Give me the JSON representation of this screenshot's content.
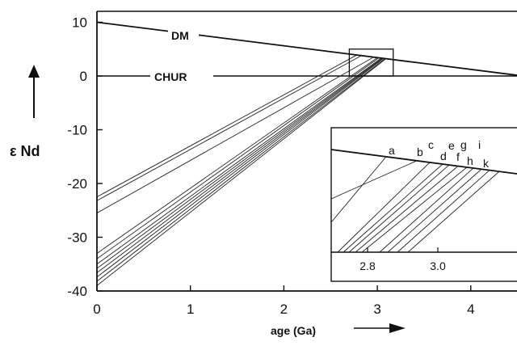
{
  "chart_data": {
    "type": "line",
    "title": "",
    "xlabel": "age (Ga)",
    "ylabel": "ε Nd",
    "xlim": [
      0,
      4.56
    ],
    "ylim": [
      -40,
      12
    ],
    "x_ticks": [
      0,
      1,
      2,
      3,
      4
    ],
    "x_tick_labels": [
      "0",
      "1",
      "2",
      "3",
      "4"
    ],
    "y_ticks": [
      10,
      0,
      -10,
      -20,
      -30,
      -40
    ],
    "y_tick_labels": [
      "10",
      "0",
      "-10",
      "-20",
      "-30",
      "-40"
    ],
    "grid": false,
    "reference_lines": [
      {
        "name": "DM",
        "x": [
          0,
          4.56
        ],
        "y": [
          10,
          0
        ]
      },
      {
        "name": "CHUR",
        "x": [
          0,
          4.56
        ],
        "y": [
          0,
          0
        ]
      }
    ],
    "series": [
      {
        "x": [
          0,
          2.96
        ],
        "y": [
          -25.5,
          3.5
        ]
      },
      {
        "x": [
          0,
          3.0
        ],
        "y": [
          -33.0,
          3.4
        ]
      },
      {
        "x": [
          0,
          3.02
        ],
        "y": [
          -34.0,
          3.4
        ]
      },
      {
        "x": [
          0,
          3.04
        ],
        "y": [
          -35.0,
          3.3
        ]
      },
      {
        "x": [
          0,
          3.05
        ],
        "y": [
          -35.8,
          3.3
        ]
      },
      {
        "x": [
          0,
          3.06
        ],
        "y": [
          -36.6,
          3.3
        ]
      },
      {
        "x": [
          0,
          3.07
        ],
        "y": [
          -37.4,
          3.3
        ]
      },
      {
        "x": [
          0,
          3.08
        ],
        "y": [
          -38.2,
          3.2
        ]
      },
      {
        "x": [
          0,
          3.09
        ],
        "y": [
          -39.0,
          3.2
        ]
      },
      {
        "x": [
          0,
          2.78
        ],
        "y": [
          -22.5,
          3.9
        ]
      },
      {
        "x": [
          0,
          2.83
        ],
        "y": [
          -23.2,
          3.8
        ]
      }
    ],
    "annotations": {
      "zoom_box": {
        "x": [
          2.7,
          3.17
        ],
        "y": [
          0,
          5
        ]
      }
    },
    "inset": {
      "xlim": [
        2.63,
        3.22
      ],
      "x_ticks": [
        2.8,
        3.0
      ],
      "x_tick_labels": [
        "2.8",
        "3.0"
      ],
      "curve_labels": [
        "a",
        "b",
        "c",
        "d",
        "e",
        "f",
        "g",
        "h",
        "i",
        "k"
      ]
    },
    "axis_arrows": [
      "up",
      "right"
    ]
  }
}
